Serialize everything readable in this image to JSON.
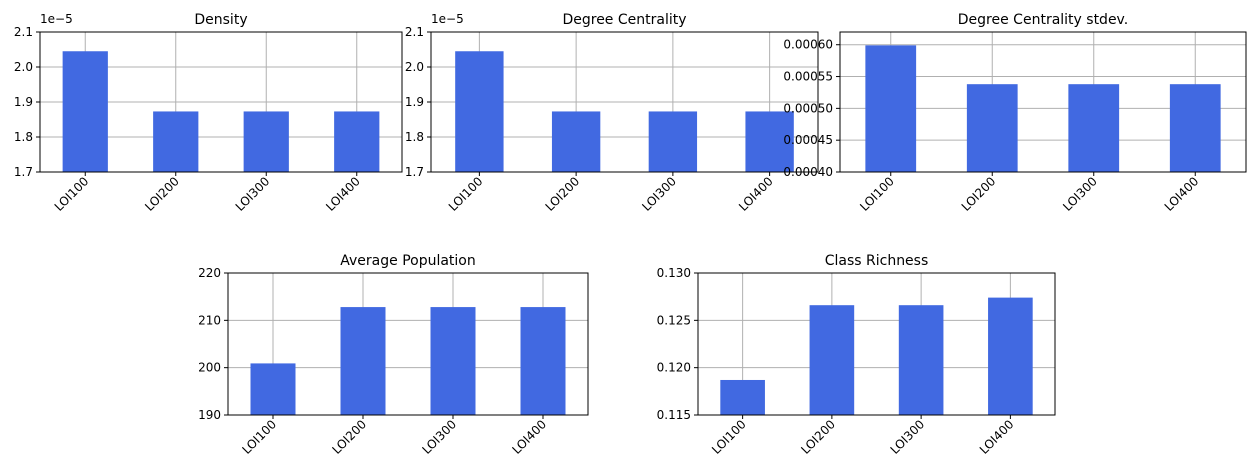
{
  "chart_data": [
    {
      "type": "bar",
      "title": "Density",
      "categories": [
        "LOI100",
        "LOI200",
        "LOI300",
        "LOI400"
      ],
      "values": [
        2.045,
        1.873,
        1.873,
        1.873
      ],
      "ylim": [
        1.7,
        2.1
      ],
      "yticks": [
        1.7,
        1.8,
        1.9,
        2.0,
        2.1
      ],
      "ytick_labels": [
        "1.7",
        "1.8",
        "1.9",
        "2.0",
        "2.1"
      ],
      "offset_label": "1e−5",
      "grid": true,
      "color": "#4169e1"
    },
    {
      "type": "bar",
      "title": "Degree Centrality",
      "categories": [
        "LOI100",
        "LOI200",
        "LOI300",
        "LOI400"
      ],
      "values": [
        2.045,
        1.873,
        1.873,
        1.873
      ],
      "ylim": [
        1.7,
        2.1
      ],
      "yticks": [
        1.7,
        1.8,
        1.9,
        2.0,
        2.1
      ],
      "ytick_labels": [
        "1.7",
        "1.8",
        "1.9",
        "2.0",
        "2.1"
      ],
      "offset_label": "1e−5",
      "grid": true,
      "color": "#4169e1"
    },
    {
      "type": "bar",
      "title": "Degree Centrality stdev.",
      "categories": [
        "LOI100",
        "LOI200",
        "LOI300",
        "LOI400"
      ],
      "values": [
        0.000599,
        0.000538,
        0.000538,
        0.000538
      ],
      "ylim": [
        0.0004,
        0.00062
      ],
      "yticks": [
        0.0004,
        0.00045,
        0.0005,
        0.00055,
        0.0006
      ],
      "ytick_labels": [
        "0.00040",
        "0.00045",
        "0.00050",
        "0.00055",
        "0.00060"
      ],
      "grid": true,
      "color": "#4169e1"
    },
    {
      "type": "bar",
      "title": "Average Population",
      "categories": [
        "LOI100",
        "LOI200",
        "LOI300",
        "LOI400"
      ],
      "values": [
        200.9,
        212.8,
        212.8,
        212.8
      ],
      "ylim": [
        190,
        220
      ],
      "yticks": [
        190,
        200,
        210,
        220
      ],
      "ytick_labels": [
        "190",
        "200",
        "210",
        "220"
      ],
      "grid": true,
      "color": "#4169e1"
    },
    {
      "type": "bar",
      "title": "Class Richness",
      "categories": [
        "LOI100",
        "LOI200",
        "LOI300",
        "LOI400"
      ],
      "values": [
        0.1187,
        0.1266,
        0.1266,
        0.1274
      ],
      "ylim": [
        0.115,
        0.13
      ],
      "yticks": [
        0.115,
        0.12,
        0.125,
        0.13
      ],
      "ytick_labels": [
        "0.115",
        "0.120",
        "0.125",
        "0.130"
      ],
      "grid": true,
      "color": "#4169e1"
    }
  ]
}
